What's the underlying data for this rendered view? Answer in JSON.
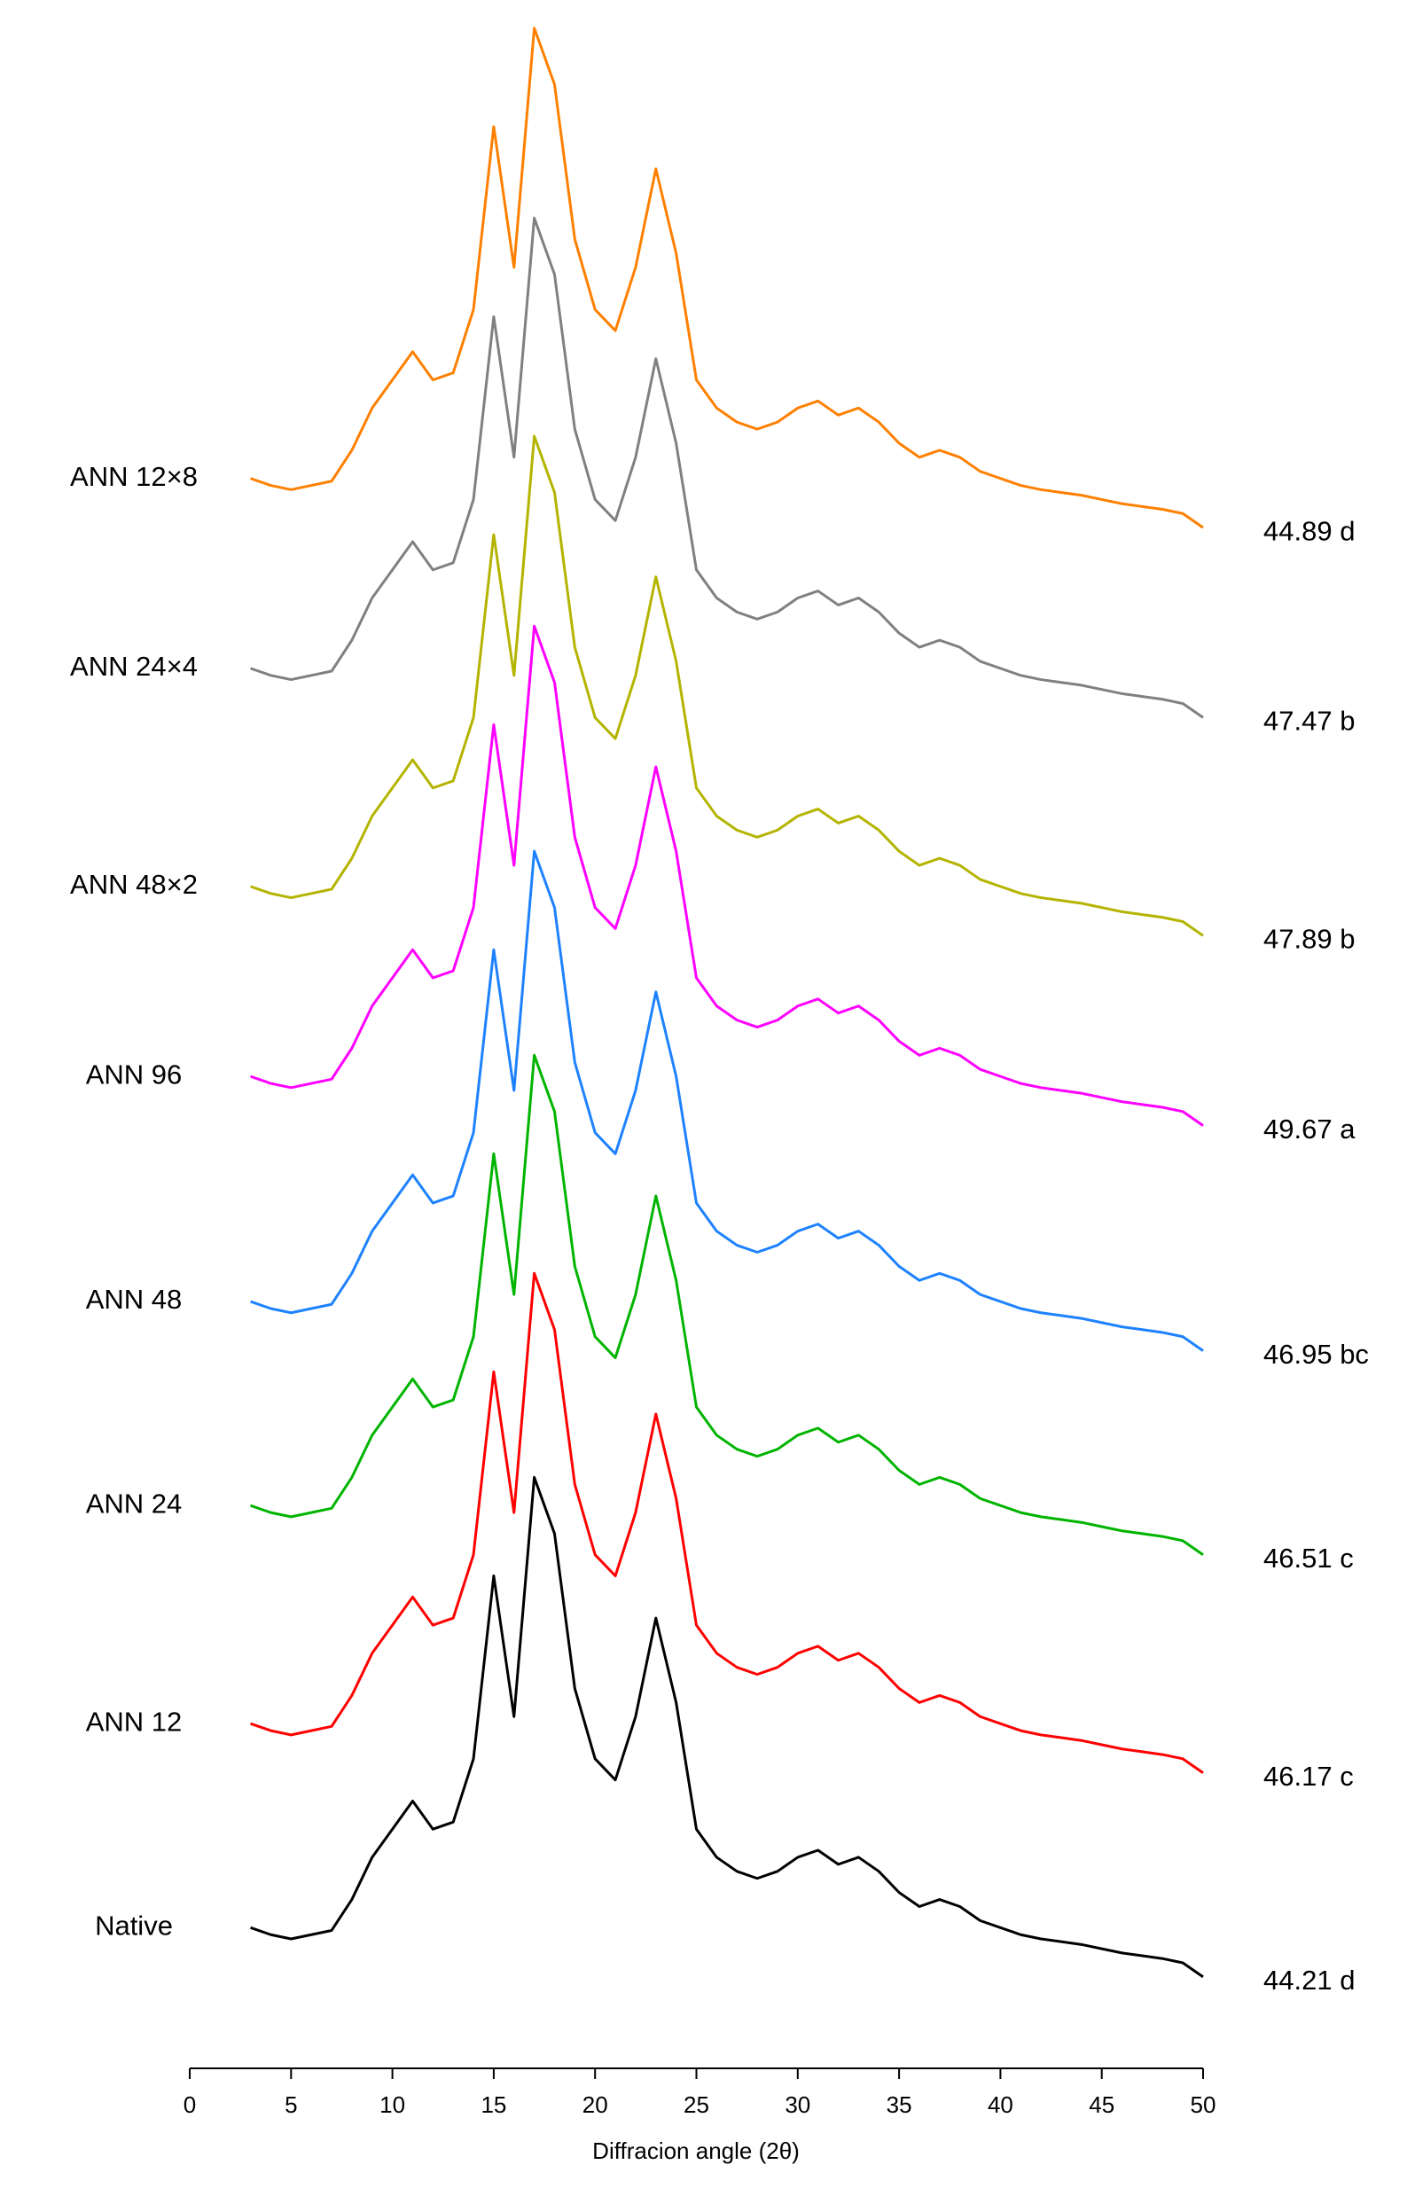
{
  "chart_data": {
    "type": "line",
    "xlabel": "Diffracion angle (2θ)",
    "xlim": [
      0,
      50
    ],
    "xticks": [
      0,
      5,
      10,
      15,
      20,
      25,
      30,
      35,
      40,
      45,
      50
    ],
    "ylim": [
      0,
      147
    ],
    "x": [
      3,
      4,
      5,
      6,
      7,
      8,
      9,
      10,
      11,
      12,
      13,
      14,
      15,
      16,
      17,
      18,
      19,
      20,
      21,
      22,
      23,
      24,
      25,
      26,
      27,
      28,
      29,
      30,
      31,
      32,
      33,
      34,
      35,
      36,
      37,
      38,
      39,
      40,
      41,
      42,
      43,
      44,
      45,
      46,
      47,
      48,
      49,
      50
    ],
    "series": [
      {
        "name": "Native",
        "label": "44.21 d",
        "color": "#000000",
        "values": [
          10,
          9.5,
          9.2,
          9.5,
          9.8,
          12,
          15,
          17,
          19,
          17,
          17.5,
          22,
          35,
          25,
          42,
          38,
          27,
          22,
          20.5,
          25,
          32,
          26,
          17,
          15,
          14,
          13.5,
          14,
          15,
          15.5,
          14.5,
          15,
          14,
          12.5,
          11.5,
          12,
          11.5,
          10.5,
          10,
          9.5,
          9.2,
          9,
          8.8,
          8.5,
          8.2,
          8,
          7.8,
          7.5,
          6.5
        ]
      },
      {
        "name": "ANN 12",
        "label": "46.17 c",
        "color": "#ff0000",
        "values": [
          24.5,
          24,
          23.7,
          24,
          24.3,
          26.5,
          29.5,
          31.5,
          33.5,
          31.5,
          32,
          36.5,
          49.5,
          39.5,
          56.5,
          52.5,
          41.5,
          36.5,
          35,
          39.5,
          46.5,
          40.5,
          31.5,
          29.5,
          28.5,
          28,
          28.5,
          29.5,
          30,
          29,
          29.5,
          28.5,
          27,
          26,
          26.5,
          26,
          25,
          24.5,
          24,
          23.7,
          23.5,
          23.3,
          23,
          22.7,
          22.5,
          22.3,
          22,
          21
        ]
      },
      {
        "name": "ANN 24",
        "label": "46.51 c",
        "color": "#00b400",
        "values": [
          40,
          39.5,
          39.2,
          39.5,
          39.8,
          42,
          45,
          47,
          49,
          47,
          47.5,
          52,
          65,
          55,
          72,
          68,
          57,
          52,
          50.5,
          55,
          62,
          56,
          47,
          45,
          44,
          43.5,
          44,
          45,
          45.5,
          44.5,
          45,
          44,
          42.5,
          41.5,
          42,
          41.5,
          40.5,
          40,
          39.5,
          39.2,
          39,
          38.8,
          38.5,
          38.2,
          38,
          37.8,
          37.5,
          36.5
        ]
      },
      {
        "name": "ANN 48",
        "label": "46.95 bc",
        "color": "#1e82ff",
        "values": [
          54.5,
          54,
          53.7,
          54,
          54.3,
          56.5,
          59.5,
          61.5,
          63.5,
          61.5,
          62,
          66.5,
          79.5,
          69.5,
          86.5,
          82.5,
          71.5,
          66.5,
          65,
          69.5,
          76.5,
          70.5,
          61.5,
          59.5,
          58.5,
          58,
          58.5,
          59.5,
          60,
          59,
          59.5,
          58.5,
          57,
          56,
          56.5,
          56,
          55,
          54.5,
          54,
          53.7,
          53.5,
          53.3,
          53,
          52.7,
          52.5,
          52.3,
          52,
          51
        ]
      },
      {
        "name": "ANN 96",
        "label": "49.67 a",
        "color": "#ff00ff",
        "values": [
          70.5,
          70,
          69.7,
          70,
          70.3,
          72.5,
          75.5,
          77.5,
          79.5,
          77.5,
          78,
          82.5,
          95.5,
          85.5,
          102.5,
          98.5,
          87.5,
          82.5,
          81,
          85.5,
          92.5,
          86.5,
          77.5,
          75.5,
          74.5,
          74,
          74.5,
          75.5,
          76,
          75,
          75.5,
          74.5,
          73,
          72,
          72.5,
          72,
          71,
          70.5,
          70,
          69.7,
          69.5,
          69.3,
          69,
          68.7,
          68.5,
          68.3,
          68,
          67
        ]
      },
      {
        "name": "ANN 48×2",
        "label": "47.89 b",
        "color": "#b4b400",
        "values": [
          84,
          83.5,
          83.2,
          83.5,
          83.8,
          86,
          89,
          91,
          93,
          91,
          91.5,
          96,
          109,
          99,
          116,
          112,
          101,
          96,
          94.5,
          99,
          106,
          100,
          91,
          89,
          88,
          87.5,
          88,
          89,
          89.5,
          88.5,
          89,
          88,
          86.5,
          85.5,
          86,
          85.5,
          84.5,
          84,
          83.5,
          83.2,
          83,
          82.8,
          82.5,
          82.2,
          82,
          81.8,
          81.5,
          80.5
        ]
      },
      {
        "name": "ANN 24×4",
        "label": "47.47 b",
        "color": "#808080",
        "values": [
          99.5,
          99,
          98.7,
          99,
          99.3,
          101.5,
          104.5,
          106.5,
          108.5,
          106.5,
          107,
          111.5,
          124.5,
          114.5,
          131.5,
          127.5,
          116.5,
          111.5,
          110,
          114.5,
          121.5,
          115.5,
          106.5,
          104.5,
          103.5,
          103,
          103.5,
          104.5,
          105,
          104,
          104.5,
          103.5,
          102,
          101,
          101.5,
          101,
          100,
          99.5,
          99,
          98.7,
          98.5,
          98.3,
          98,
          97.7,
          97.5,
          97.3,
          97,
          96
        ]
      },
      {
        "name": "ANN 12×8",
        "label": "44.89 d",
        "color": "#ff8000",
        "values": [
          113,
          112.5,
          112.2,
          112.5,
          112.8,
          115,
          118,
          120,
          122,
          120,
          120.5,
          125,
          138,
          128,
          145,
          141,
          130,
          125,
          123.5,
          128,
          135,
          129,
          120,
          118,
          117,
          116.5,
          117,
          118,
          118.5,
          117.5,
          118,
          117,
          115.5,
          114.5,
          115,
          114.5,
          113.5,
          113,
          112.5,
          112.2,
          112,
          111.8,
          111.5,
          111.2,
          111,
          110.8,
          110.5,
          109.5
        ]
      }
    ]
  }
}
